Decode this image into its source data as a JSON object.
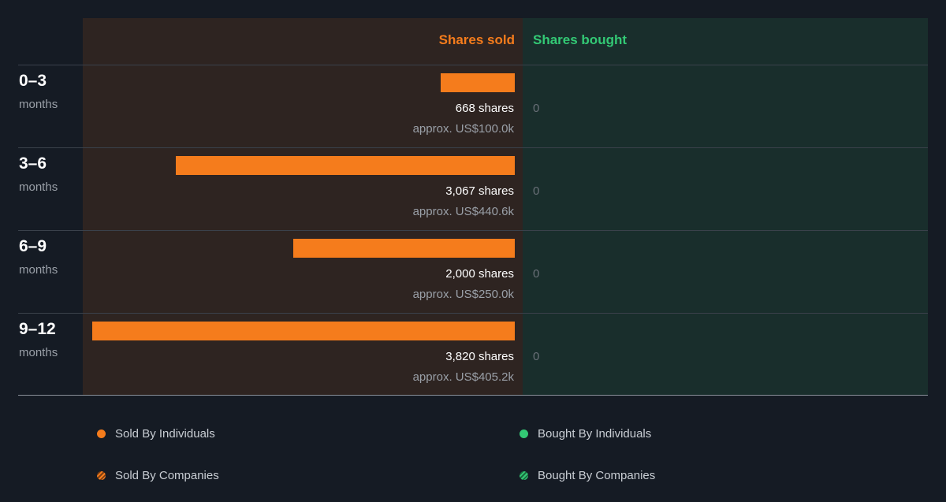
{
  "chart_data": {
    "type": "bar",
    "header": {
      "sold_label": "Shares sold",
      "bought_label": "Shares bought"
    },
    "categories": [
      "0–3",
      "3–6",
      "6–9",
      "9–12"
    ],
    "category_unit": "months",
    "series": [
      {
        "name": "Shares sold",
        "values": [
          668,
          3067,
          2000,
          3820
        ]
      },
      {
        "name": "Shares bought",
        "values": [
          0,
          0,
          0,
          0
        ]
      }
    ],
    "rows": [
      {
        "period": "0–3",
        "unit": "months",
        "sold": 668,
        "sold_label": "668 shares",
        "approx_label": "approx. US$100.0k",
        "bought_label": "0"
      },
      {
        "period": "3–6",
        "unit": "months",
        "sold": 3067,
        "sold_label": "3,067 shares",
        "approx_label": "approx. US$440.6k",
        "bought_label": "0"
      },
      {
        "period": "6–9",
        "unit": "months",
        "sold": 2000,
        "sold_label": "2,000 shares",
        "approx_label": "approx. US$250.0k",
        "bought_label": "0"
      },
      {
        "period": "9–12",
        "unit": "months",
        "sold": 3820,
        "sold_label": "3,820 shares",
        "approx_label": "approx. US$405.2k",
        "bought_label": "0"
      }
    ],
    "legend": [
      {
        "label": "Sold By Individuals",
        "marker": "dot",
        "color": "#f57c1c"
      },
      {
        "label": "Bought By Individuals",
        "marker": "dot",
        "color": "#33c975"
      },
      {
        "label": "Sold By Companies",
        "marker": "hatched",
        "color": "#f57c1c"
      },
      {
        "label": "Bought By Companies",
        "marker": "hatched",
        "color": "#33c975"
      }
    ],
    "colors": {
      "sold": "#f57c1c",
      "bought": "#33c975"
    }
  }
}
